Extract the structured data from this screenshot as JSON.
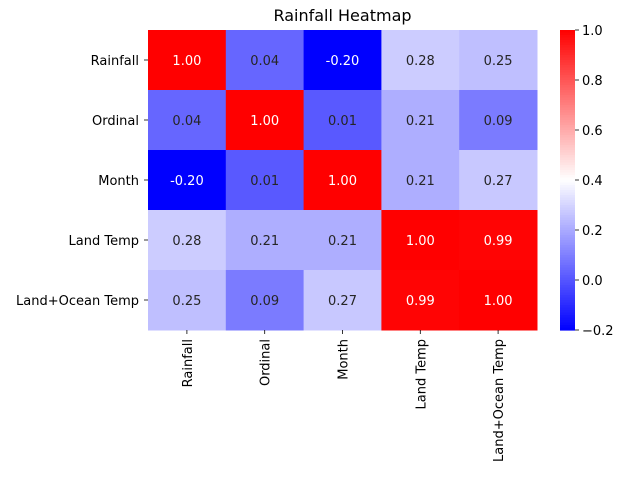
{
  "chart_data": {
    "type": "heatmap",
    "title": "Rainfall Heatmap",
    "rows": [
      "Rainfall",
      "Ordinal",
      "Month",
      "Land Temp",
      "Land+Ocean Temp"
    ],
    "columns": [
      "Rainfall",
      "Ordinal",
      "Month",
      "Land Temp",
      "Land+Ocean Temp"
    ],
    "values": [
      [
        1.0,
        0.04,
        -0.2,
        0.28,
        0.25
      ],
      [
        0.04,
        1.0,
        0.01,
        0.21,
        0.09
      ],
      [
        -0.2,
        0.01,
        1.0,
        0.21,
        0.27
      ],
      [
        0.28,
        0.21,
        0.21,
        1.0,
        0.99
      ],
      [
        0.25,
        0.09,
        0.27,
        0.99,
        1.0
      ]
    ],
    "value_format": "0.00",
    "colormap": "bwr",
    "colors": {
      "low": "#0000ff",
      "mid": "#ffffff",
      "high": "#ff0000"
    },
    "vmin": -0.2,
    "vmax": 1.0,
    "colorbar": {
      "ticks": [
        "-0.2",
        "0.0",
        "0.2",
        "0.4",
        "0.6",
        "0.8",
        "1.0"
      ]
    },
    "legend_position": "right",
    "grid": false
  }
}
